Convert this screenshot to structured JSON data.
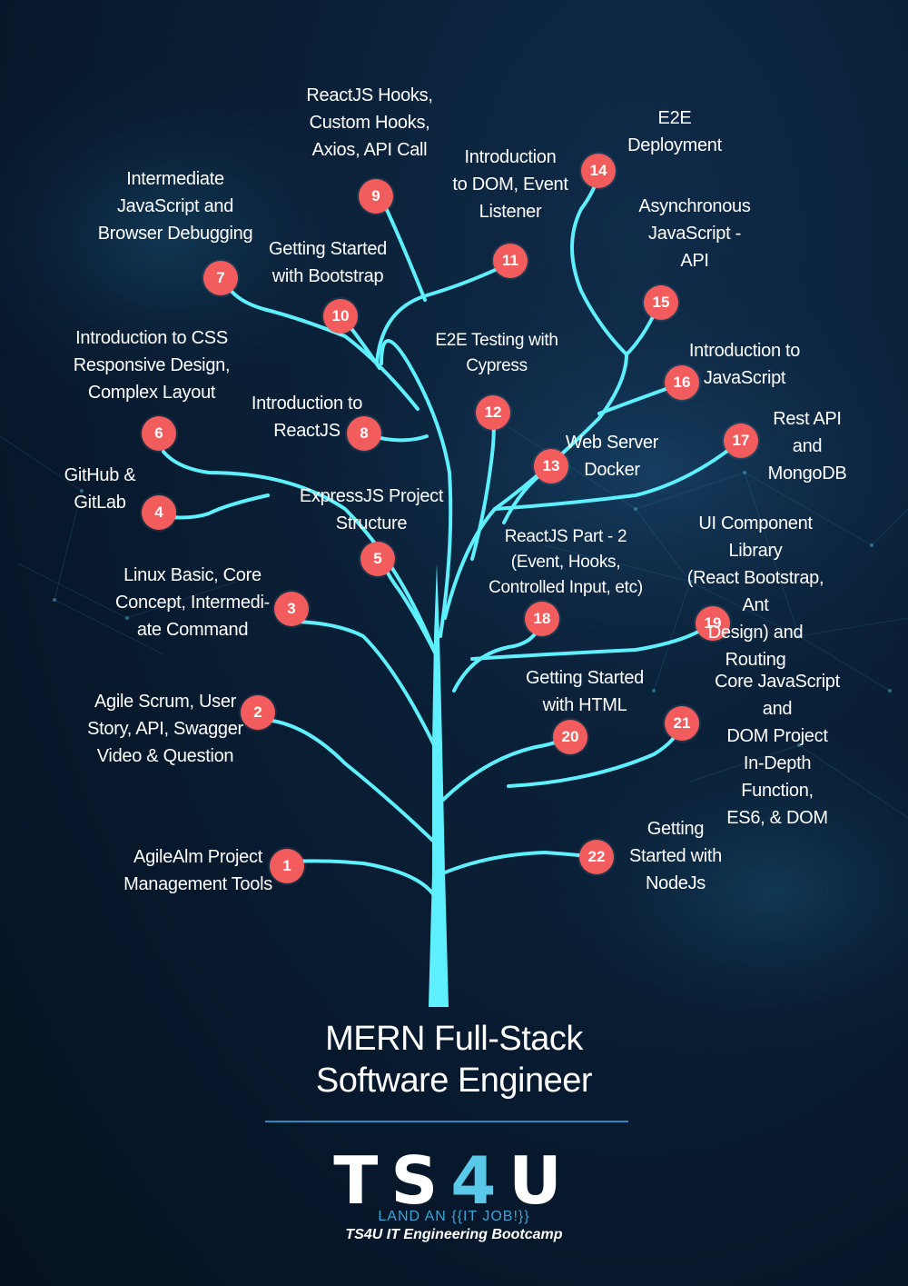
{
  "title": "MERN Full-Stack\nSoftware Engineer",
  "logo": {
    "text_a": "TS",
    "text_four": "4",
    "text_b": "U",
    "tagline": "LAND AN {{IT JOB!}}",
    "subtitle": "TS4U IT Engineering Bootcamp"
  },
  "colors": {
    "branch": "#5ff0ff",
    "badge": "#f25c5c",
    "divider": "#2f86c8"
  },
  "steps": [
    {
      "num": "1",
      "label": "AgileAlm Project\nManagement Tools"
    },
    {
      "num": "2",
      "label": "Agile Scrum, User\nStory, API, Swagger\nVideo & Question"
    },
    {
      "num": "3",
      "label": "Linux Basic, Core\nConcept, Intermedi-\nate Command"
    },
    {
      "num": "4",
      "label": "GitHub &\nGitLab"
    },
    {
      "num": "5",
      "label": "ExpressJS Project\nStructure"
    },
    {
      "num": "6",
      "label": "Introduction to CSS\nResponsive Design,\nComplex Layout"
    },
    {
      "num": "7",
      "label": "Intermediate\nJavaScript and\nBrowser Debugging"
    },
    {
      "num": "8",
      "label": "Introduction to\nReactJS"
    },
    {
      "num": "9",
      "label": "ReactJS Hooks,\nCustom Hooks,\nAxios, API Call"
    },
    {
      "num": "10",
      "label": "Getting Started\nwith Bootstrap"
    },
    {
      "num": "11",
      "label": "Introduction\nto DOM, Event\nListener"
    },
    {
      "num": "12",
      "label": "E2E Testing with\nCypress"
    },
    {
      "num": "13",
      "label": "Web Server\nDocker"
    },
    {
      "num": "14",
      "label": "E2E\nDeployment"
    },
    {
      "num": "15",
      "label": "Asynchronous\nJavaScript -\nAPI"
    },
    {
      "num": "16",
      "label": "Introduction to\nJavaScript"
    },
    {
      "num": "17",
      "label": "Rest API and\nMongoDB"
    },
    {
      "num": "18",
      "label": "ReactJS Part - 2\n(Event, Hooks,\nControlled Input, etc)"
    },
    {
      "num": "19",
      "label": "UI Component Library\n(React Bootstrap, Ant\nDesign) and Routing"
    },
    {
      "num": "20",
      "label": "Getting Started\nwith HTML"
    },
    {
      "num": "21",
      "label": "Core JavaScript and\nDOM Project\nIn-Depth Function,\nES6, & DOM"
    },
    {
      "num": "22",
      "label": "Getting\nStarted with\nNodeJs"
    }
  ]
}
